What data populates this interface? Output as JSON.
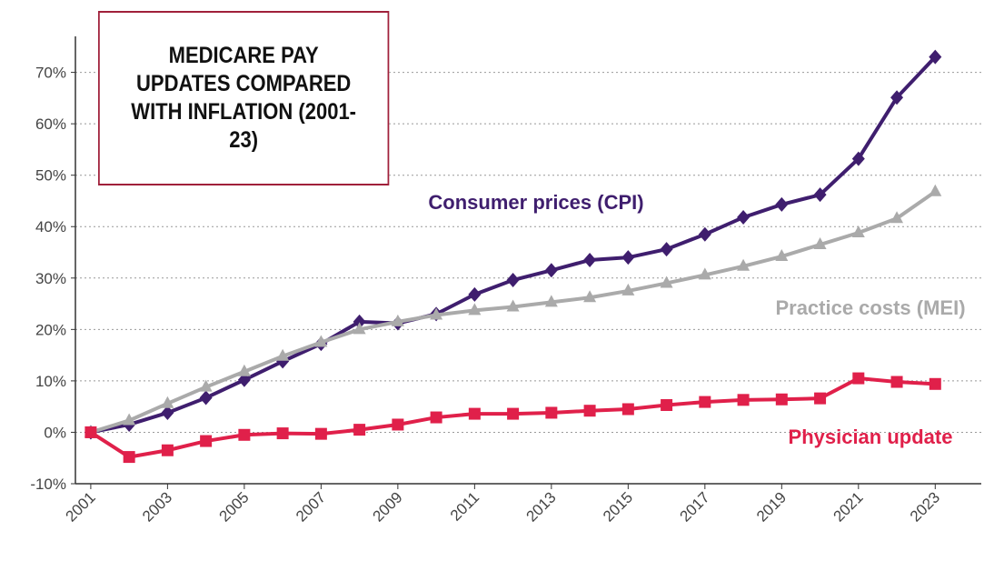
{
  "chart_data": {
    "type": "line",
    "title": "MEDICARE PAY UPDATES COMPARED WITH INFLATION (2001-23)",
    "x": [
      2001,
      2002,
      2003,
      2004,
      2005,
      2006,
      2007,
      2008,
      2009,
      2010,
      2011,
      2012,
      2013,
      2014,
      2015,
      2016,
      2017,
      2018,
      2019,
      2020,
      2021,
      2022,
      2023
    ],
    "series": [
      {
        "name": "Consumer prices (CPI)",
        "color": "#3f1e6e",
        "marker": "diamond",
        "values": [
          0,
          1.5,
          3.8,
          6.7,
          10.2,
          13.8,
          17.2,
          21.5,
          21.2,
          23,
          26.8,
          29.6,
          31.5,
          33.5,
          34,
          35.6,
          38.5,
          41.8,
          44.3,
          46.2,
          53.2,
          65.1,
          73
        ]
      },
      {
        "name": "Practice costs (MEI)",
        "color": "#aaaaaa",
        "marker": "triangle",
        "values": [
          0,
          2.3,
          5.6,
          8.8,
          11.8,
          14.8,
          17.5,
          20,
          21.5,
          22.8,
          23.7,
          24.4,
          25.3,
          26.2,
          27.5,
          29,
          30.6,
          32.3,
          34.2,
          36.5,
          38.8,
          41.6,
          46.8
        ]
      },
      {
        "name": "Physician update",
        "color": "#e0204a",
        "marker": "square",
        "values": [
          0,
          -4.8,
          -3.5,
          -1.7,
          -0.5,
          -0.2,
          -0.3,
          0.5,
          1.5,
          2.9,
          3.6,
          3.6,
          3.8,
          4.2,
          4.5,
          5.3,
          5.9,
          6.3,
          6.4,
          6.6,
          10.5,
          9.8,
          9.4
        ]
      }
    ],
    "xlim": [
      2000.6,
      2024.2
    ],
    "xticks": [
      2001,
      2003,
      2005,
      2007,
      2009,
      2011,
      2013,
      2015,
      2017,
      2019,
      2021,
      2023
    ],
    "ylim": [
      -10,
      77
    ],
    "yticks": [
      {
        "value": -10,
        "label": "-10%"
      },
      {
        "value": 0,
        "label": "0%"
      },
      {
        "value": 10,
        "label": "10%"
      },
      {
        "value": 20,
        "label": "20%"
      },
      {
        "value": 30,
        "label": "30%"
      },
      {
        "value": 40,
        "label": "40%"
      },
      {
        "value": 50,
        "label": "50%"
      },
      {
        "value": 60,
        "label": "60%"
      },
      {
        "value": 70,
        "label": "70%"
      }
    ],
    "grid": true
  }
}
